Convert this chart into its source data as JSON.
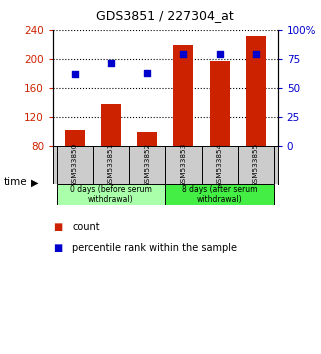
{
  "title": "GDS3851 / 227304_at",
  "samples": [
    "GSM533850",
    "GSM533851",
    "GSM533852",
    "GSM533853",
    "GSM533854",
    "GSM533855"
  ],
  "bar_values": [
    103,
    138,
    100,
    220,
    197,
    232
  ],
  "scatter_values": [
    62,
    72,
    63,
    79,
    79,
    79
  ],
  "bar_bottom": 80,
  "ylim_left": [
    80,
    240
  ],
  "ylim_right": [
    0,
    100
  ],
  "yticks_left": [
    80,
    120,
    160,
    200,
    240
  ],
  "yticks_right": [
    0,
    25,
    50,
    75,
    100
  ],
  "ytick_labels_right": [
    "0",
    "25",
    "50",
    "75",
    "100%"
  ],
  "bar_color": "#cc2200",
  "scatter_color": "#0000cc",
  "groups": [
    {
      "label": "0 days (before serum\nwithdrawal)",
      "start": 0,
      "end": 3,
      "color": "#aaffaa"
    },
    {
      "label": "8 days (after serum\nwithdrawal)",
      "start": 3,
      "end": 6,
      "color": "#44ee44"
    }
  ],
  "xlabel_left_color": "#cc2200",
  "xlabel_right_color": "#0000cc",
  "background_color": "#ffffff",
  "label_area_bg": "#cccccc",
  "bar_width": 0.55,
  "time_label": "time",
  "legend_count_label": "count",
  "legend_pct_label": "percentile rank within the sample"
}
